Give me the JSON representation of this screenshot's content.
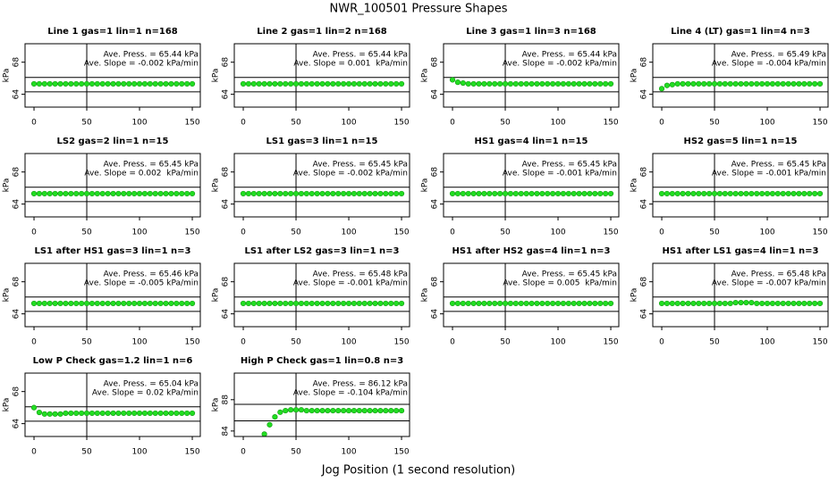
{
  "title": "NWR_100501  Pressure Shapes",
  "xlabel": "Jog Position (1 second resolution)",
  "chart_data": [
    {
      "type": "scatter",
      "title": "Line 1 gas=1 lin=1 n=168",
      "ylabel": "kPa",
      "color": "#22dd22",
      "x": [
        0,
        5,
        10,
        15,
        20,
        25,
        30,
        35,
        40,
        45,
        50,
        55,
        60,
        65,
        70,
        75,
        80,
        85,
        90,
        95,
        100,
        105,
        110,
        115,
        120,
        125,
        130,
        135,
        140,
        145,
        150
      ],
      "values": [
        65.3,
        65.3,
        65.3,
        65.3,
        65.3,
        65.3,
        65.3,
        65.3,
        65.3,
        65.3,
        65.3,
        65.3,
        65.3,
        65.3,
        65.3,
        65.3,
        65.3,
        65.3,
        65.3,
        65.3,
        65.3,
        65.3,
        65.3,
        65.3,
        65.3,
        65.3,
        65.3,
        65.3,
        65.3,
        65.3,
        65.3
      ],
      "xlim": [
        -8.5,
        157.6
      ],
      "ylim": [
        62.4,
        70.3
      ],
      "xticks": [
        0,
        50,
        100,
        150
      ],
      "yticks": [
        64,
        68
      ],
      "hlines": [
        66.1,
        64.3
      ],
      "vline": 50,
      "annotations": [
        "Ave. Press. = 65.44 kPa",
        "Ave. Slope = -0.002 kPa/min"
      ]
    },
    {
      "type": "scatter",
      "title": "Line 2 gas=1 lin=2 n=168",
      "ylabel": "kPa",
      "color": "#22dd22",
      "x": [
        0,
        5,
        10,
        15,
        20,
        25,
        30,
        35,
        40,
        45,
        50,
        55,
        60,
        65,
        70,
        75,
        80,
        85,
        90,
        95,
        100,
        105,
        110,
        115,
        120,
        125,
        130,
        135,
        140,
        145,
        150
      ],
      "values": [
        65.3,
        65.3,
        65.3,
        65.3,
        65.3,
        65.3,
        65.3,
        65.3,
        65.3,
        65.3,
        65.3,
        65.3,
        65.3,
        65.3,
        65.3,
        65.3,
        65.3,
        65.3,
        65.3,
        65.3,
        65.3,
        65.3,
        65.3,
        65.3,
        65.3,
        65.3,
        65.3,
        65.3,
        65.3,
        65.3,
        65.3
      ],
      "xlim": [
        -8.5,
        157.6
      ],
      "ylim": [
        62.4,
        70.3
      ],
      "xticks": [
        0,
        50,
        100,
        150
      ],
      "yticks": [
        64,
        68
      ],
      "hlines": [
        66.1,
        64.3
      ],
      "vline": 50,
      "annotations": [
        "Ave. Press. = 65.44 kPa",
        "Ave. Slope = 0.001  kPa/min"
      ]
    },
    {
      "type": "scatter",
      "title": "Line 3 gas=1 lin=3 n=168",
      "ylabel": "kPa",
      "color": "#22dd22",
      "x": [
        0,
        5,
        10,
        15,
        20,
        25,
        30,
        35,
        40,
        45,
        50,
        55,
        60,
        65,
        70,
        75,
        80,
        85,
        90,
        95,
        100,
        105,
        110,
        115,
        120,
        125,
        130,
        135,
        140,
        145,
        150
      ],
      "values": [
        65.8,
        65.5,
        65.4,
        65.3,
        65.3,
        65.3,
        65.3,
        65.3,
        65.3,
        65.3,
        65.3,
        65.3,
        65.3,
        65.3,
        65.3,
        65.3,
        65.3,
        65.3,
        65.3,
        65.3,
        65.3,
        65.3,
        65.3,
        65.3,
        65.3,
        65.3,
        65.3,
        65.3,
        65.3,
        65.3,
        65.3
      ],
      "xlim": [
        -8.5,
        157.6
      ],
      "ylim": [
        62.4,
        70.3
      ],
      "xticks": [
        0,
        50,
        100,
        150
      ],
      "yticks": [
        64,
        68
      ],
      "hlines": [
        66.1,
        64.3
      ],
      "vline": 50,
      "annotations": [
        "Ave. Press. = 65.44 kPa",
        "Ave. Slope = -0.002 kPa/min"
      ]
    },
    {
      "type": "scatter",
      "title": "Line 4 (LT) gas=1 lin=4 n=3",
      "ylabel": "kPa",
      "color": "#22dd22",
      "x": [
        0,
        5,
        10,
        15,
        20,
        25,
        30,
        35,
        40,
        45,
        50,
        55,
        60,
        65,
        70,
        75,
        80,
        85,
        90,
        95,
        100,
        105,
        110,
        115,
        120,
        125,
        130,
        135,
        140,
        145,
        150
      ],
      "values": [
        64.7,
        65.1,
        65.2,
        65.3,
        65.3,
        65.3,
        65.3,
        65.3,
        65.3,
        65.3,
        65.3,
        65.3,
        65.3,
        65.3,
        65.3,
        65.3,
        65.3,
        65.3,
        65.3,
        65.3,
        65.3,
        65.3,
        65.3,
        65.3,
        65.3,
        65.3,
        65.3,
        65.3,
        65.3,
        65.3,
        65.3
      ],
      "xlim": [
        -8.5,
        157.6
      ],
      "ylim": [
        62.4,
        70.3
      ],
      "xticks": [
        0,
        50,
        100,
        150
      ],
      "yticks": [
        64,
        68
      ],
      "hlines": [
        66.1,
        64.3
      ],
      "vline": 50,
      "annotations": [
        "Ave. Press. = 65.49 kPa",
        "Ave. Slope = -0.004 kPa/min"
      ]
    },
    {
      "type": "scatter",
      "title": "LS2 gas=2 lin=1 n=15",
      "ylabel": "kPa",
      "color": "#22dd22",
      "x": [
        0,
        5,
        10,
        15,
        20,
        25,
        30,
        35,
        40,
        45,
        50,
        55,
        60,
        65,
        70,
        75,
        80,
        85,
        90,
        95,
        100,
        105,
        110,
        115,
        120,
        125,
        130,
        135,
        140,
        145,
        150
      ],
      "values": [
        65.3,
        65.3,
        65.3,
        65.3,
        65.3,
        65.3,
        65.3,
        65.3,
        65.3,
        65.3,
        65.3,
        65.3,
        65.3,
        65.3,
        65.3,
        65.3,
        65.3,
        65.3,
        65.3,
        65.3,
        65.3,
        65.3,
        65.3,
        65.3,
        65.3,
        65.3,
        65.3,
        65.3,
        65.3,
        65.3,
        65.3
      ],
      "xlim": [
        -8.5,
        157.6
      ],
      "ylim": [
        62.4,
        70.3
      ],
      "xticks": [
        0,
        50,
        100,
        150
      ],
      "yticks": [
        64,
        68
      ],
      "hlines": [
        66.1,
        64.3
      ],
      "vline": 50,
      "annotations": [
        "Ave. Press. = 65.45 kPa",
        "Ave. Slope = 0.002  kPa/min"
      ]
    },
    {
      "type": "scatter",
      "title": "LS1 gas=3 lin=1 n=15",
      "ylabel": "kPa",
      "color": "#22dd22",
      "x": [
        0,
        5,
        10,
        15,
        20,
        25,
        30,
        35,
        40,
        45,
        50,
        55,
        60,
        65,
        70,
        75,
        80,
        85,
        90,
        95,
        100,
        105,
        110,
        115,
        120,
        125,
        130,
        135,
        140,
        145,
        150
      ],
      "values": [
        65.3,
        65.3,
        65.3,
        65.3,
        65.3,
        65.3,
        65.3,
        65.3,
        65.3,
        65.3,
        65.3,
        65.3,
        65.3,
        65.3,
        65.3,
        65.3,
        65.3,
        65.3,
        65.3,
        65.3,
        65.3,
        65.3,
        65.3,
        65.3,
        65.3,
        65.3,
        65.3,
        65.3,
        65.3,
        65.3,
        65.3
      ],
      "xlim": [
        -8.5,
        157.6
      ],
      "ylim": [
        62.4,
        70.3
      ],
      "xticks": [
        0,
        50,
        100,
        150
      ],
      "yticks": [
        64,
        68
      ],
      "hlines": [
        66.1,
        64.3
      ],
      "vline": 50,
      "annotations": [
        "Ave. Press. = 65.45 kPa",
        "Ave. Slope = -0.002 kPa/min"
      ]
    },
    {
      "type": "scatter",
      "title": "HS1 gas=4 lin=1 n=15",
      "ylabel": "kPa",
      "color": "#22dd22",
      "x": [
        0,
        5,
        10,
        15,
        20,
        25,
        30,
        35,
        40,
        45,
        50,
        55,
        60,
        65,
        70,
        75,
        80,
        85,
        90,
        95,
        100,
        105,
        110,
        115,
        120,
        125,
        130,
        135,
        140,
        145,
        150
      ],
      "values": [
        65.3,
        65.3,
        65.3,
        65.3,
        65.3,
        65.3,
        65.3,
        65.3,
        65.3,
        65.3,
        65.3,
        65.3,
        65.3,
        65.3,
        65.3,
        65.3,
        65.3,
        65.3,
        65.3,
        65.3,
        65.3,
        65.3,
        65.3,
        65.3,
        65.3,
        65.3,
        65.3,
        65.3,
        65.3,
        65.3,
        65.3
      ],
      "xlim": [
        -8.5,
        157.6
      ],
      "ylim": [
        62.4,
        70.3
      ],
      "xticks": [
        0,
        50,
        100,
        150
      ],
      "yticks": [
        64,
        68
      ],
      "hlines": [
        66.1,
        64.3
      ],
      "vline": 50,
      "annotations": [
        "Ave. Press. = 65.45 kPa",
        "Ave. Slope = -0.001 kPa/min"
      ]
    },
    {
      "type": "scatter",
      "title": "HS2 gas=5 lin=1 n=15",
      "ylabel": "kPa",
      "color": "#22dd22",
      "x": [
        0,
        5,
        10,
        15,
        20,
        25,
        30,
        35,
        40,
        45,
        50,
        55,
        60,
        65,
        70,
        75,
        80,
        85,
        90,
        95,
        100,
        105,
        110,
        115,
        120,
        125,
        130,
        135,
        140,
        145,
        150
      ],
      "values": [
        65.3,
        65.3,
        65.3,
        65.3,
        65.3,
        65.3,
        65.3,
        65.3,
        65.3,
        65.3,
        65.3,
        65.3,
        65.3,
        65.3,
        65.3,
        65.3,
        65.3,
        65.3,
        65.3,
        65.3,
        65.3,
        65.3,
        65.3,
        65.3,
        65.3,
        65.3,
        65.3,
        65.3,
        65.3,
        65.3,
        65.3
      ],
      "xlim": [
        -8.5,
        157.6
      ],
      "ylim": [
        62.4,
        70.3
      ],
      "xticks": [
        0,
        50,
        100,
        150
      ],
      "yticks": [
        64,
        68
      ],
      "hlines": [
        66.1,
        64.3
      ],
      "vline": 50,
      "annotations": [
        "Ave. Press. = 65.45 kPa",
        "Ave. Slope = -0.001 kPa/min"
      ]
    },
    {
      "type": "scatter",
      "title": "LS1 after HS1 gas=3 lin=1 n=3",
      "ylabel": "kPa",
      "color": "#22dd22",
      "x": [
        0,
        5,
        10,
        15,
        20,
        25,
        30,
        35,
        40,
        45,
        50,
        55,
        60,
        65,
        70,
        75,
        80,
        85,
        90,
        95,
        100,
        105,
        110,
        115,
        120,
        125,
        130,
        135,
        140,
        145,
        150
      ],
      "values": [
        65.3,
        65.3,
        65.3,
        65.3,
        65.3,
        65.3,
        65.3,
        65.3,
        65.3,
        65.3,
        65.3,
        65.3,
        65.3,
        65.3,
        65.3,
        65.3,
        65.3,
        65.3,
        65.3,
        65.3,
        65.3,
        65.3,
        65.3,
        65.3,
        65.3,
        65.3,
        65.3,
        65.3,
        65.3,
        65.3,
        65.3
      ],
      "xlim": [
        -8.5,
        157.6
      ],
      "ylim": [
        62.4,
        70.3
      ],
      "xticks": [
        0,
        50,
        100,
        150
      ],
      "yticks": [
        64,
        68
      ],
      "hlines": [
        66.1,
        64.3
      ],
      "vline": 50,
      "annotations": [
        "Ave. Press. = 65.46 kPa",
        "Ave. Slope = -0.005 kPa/min"
      ]
    },
    {
      "type": "scatter",
      "title": "LS1 after LS2 gas=3 lin=1 n=3",
      "ylabel": "kPa",
      "color": "#22dd22",
      "x": [
        0,
        5,
        10,
        15,
        20,
        25,
        30,
        35,
        40,
        45,
        50,
        55,
        60,
        65,
        70,
        75,
        80,
        85,
        90,
        95,
        100,
        105,
        110,
        115,
        120,
        125,
        130,
        135,
        140,
        145,
        150
      ],
      "values": [
        65.3,
        65.3,
        65.3,
        65.3,
        65.3,
        65.3,
        65.3,
        65.3,
        65.3,
        65.3,
        65.3,
        65.3,
        65.3,
        65.3,
        65.3,
        65.3,
        65.3,
        65.3,
        65.3,
        65.3,
        65.3,
        65.3,
        65.3,
        65.3,
        65.3,
        65.3,
        65.3,
        65.3,
        65.3,
        65.3,
        65.3
      ],
      "xlim": [
        -8.5,
        157.6
      ],
      "ylim": [
        62.4,
        70.3
      ],
      "xticks": [
        0,
        50,
        100,
        150
      ],
      "yticks": [
        64,
        68
      ],
      "hlines": [
        66.1,
        64.3
      ],
      "vline": 50,
      "annotations": [
        "Ave. Press. = 65.48 kPa",
        "Ave. Slope = -0.001 kPa/min"
      ]
    },
    {
      "type": "scatter",
      "title": "HS1 after HS2 gas=4 lin=1 n=3",
      "ylabel": "kPa",
      "color": "#22dd22",
      "x": [
        0,
        5,
        10,
        15,
        20,
        25,
        30,
        35,
        40,
        45,
        50,
        55,
        60,
        65,
        70,
        75,
        80,
        85,
        90,
        95,
        100,
        105,
        110,
        115,
        120,
        125,
        130,
        135,
        140,
        145,
        150
      ],
      "values": [
        65.3,
        65.3,
        65.3,
        65.3,
        65.3,
        65.3,
        65.3,
        65.3,
        65.3,
        65.3,
        65.3,
        65.3,
        65.3,
        65.3,
        65.3,
        65.3,
        65.3,
        65.3,
        65.3,
        65.3,
        65.3,
        65.3,
        65.3,
        65.3,
        65.3,
        65.3,
        65.3,
        65.3,
        65.3,
        65.3,
        65.3
      ],
      "xlim": [
        -8.5,
        157.6
      ],
      "ylim": [
        62.4,
        70.3
      ],
      "xticks": [
        0,
        50,
        100,
        150
      ],
      "yticks": [
        64,
        68
      ],
      "hlines": [
        66.1,
        64.3
      ],
      "vline": 50,
      "annotations": [
        "Ave. Press. = 65.45 kPa",
        "Ave. Slope = 0.005  kPa/min"
      ]
    },
    {
      "type": "scatter",
      "title": "HS1 after LS1 gas=4 lin=1 n=3",
      "ylabel": "kPa",
      "color": "#22dd22",
      "x": [
        0,
        5,
        10,
        15,
        20,
        25,
        30,
        35,
        40,
        45,
        50,
        55,
        60,
        65,
        70,
        75,
        80,
        85,
        90,
        95,
        100,
        105,
        110,
        115,
        120,
        125,
        130,
        135,
        140,
        145,
        150
      ],
      "values": [
        65.3,
        65.3,
        65.3,
        65.3,
        65.3,
        65.3,
        65.3,
        65.3,
        65.3,
        65.3,
        65.3,
        65.3,
        65.3,
        65.3,
        65.4,
        65.4,
        65.4,
        65.4,
        65.3,
        65.3,
        65.3,
        65.3,
        65.3,
        65.3,
        65.3,
        65.3,
        65.3,
        65.3,
        65.3,
        65.3,
        65.3
      ],
      "xlim": [
        -8.5,
        157.6
      ],
      "ylim": [
        62.4,
        70.3
      ],
      "xticks": [
        0,
        50,
        100,
        150
      ],
      "yticks": [
        64,
        68
      ],
      "hlines": [
        66.1,
        64.3
      ],
      "vline": 50,
      "annotations": [
        "Ave. Press. = 65.48 kPa",
        "Ave. Slope = -0.007 kPa/min"
      ]
    },
    {
      "type": "scatter",
      "title": "Low P Check gas=1.2 lin=1 n=6",
      "ylabel": "kPa",
      "color": "#22dd22",
      "x": [
        0,
        5,
        10,
        15,
        20,
        25,
        30,
        35,
        40,
        45,
        50,
        55,
        60,
        65,
        70,
        75,
        80,
        85,
        90,
        95,
        100,
        105,
        110,
        115,
        120,
        125,
        130,
        135,
        140,
        145,
        150
      ],
      "values": [
        66.0,
        65.4,
        65.2,
        65.2,
        65.2,
        65.2,
        65.3,
        65.3,
        65.3,
        65.3,
        65.3,
        65.3,
        65.3,
        65.3,
        65.3,
        65.3,
        65.3,
        65.3,
        65.3,
        65.3,
        65.3,
        65.3,
        65.3,
        65.3,
        65.3,
        65.3,
        65.3,
        65.3,
        65.3,
        65.3,
        65.3
      ],
      "xlim": [
        -8.5,
        157.6
      ],
      "ylim": [
        62.4,
        70.3
      ],
      "xticks": [
        0,
        50,
        100,
        150
      ],
      "yticks": [
        64,
        68
      ],
      "hlines": [
        66.1,
        64.3
      ],
      "vline": 50,
      "annotations": [
        "Ave. Press. = 65.04 kPa",
        "Ave. Slope = 0.02 kPa/min"
      ]
    },
    {
      "type": "scatter",
      "title": "High P Check gas=1 lin=0.8 n=3",
      "ylabel": "kPa",
      "color": "#22dd22",
      "x": [
        0,
        5,
        10,
        15,
        20,
        25,
        30,
        35,
        40,
        45,
        50,
        55,
        60,
        65,
        70,
        75,
        80,
        85,
        90,
        95,
        100,
        105,
        110,
        115,
        120,
        125,
        130,
        135,
        140,
        145,
        150
      ],
      "values": [
        null,
        null,
        null,
        null,
        83.6,
        84.8,
        85.8,
        86.4,
        86.6,
        86.7,
        86.7,
        86.7,
        86.6,
        86.6,
        86.6,
        86.6,
        86.6,
        86.6,
        86.6,
        86.6,
        86.6,
        86.6,
        86.6,
        86.6,
        86.6,
        86.6,
        86.6,
        86.6,
        86.6,
        86.6,
        86.6
      ],
      "xlim": [
        -8.5,
        157.6
      ],
      "ylim": [
        83.3,
        91.4
      ],
      "xticks": [
        0,
        50,
        100,
        150
      ],
      "yticks": [
        84,
        88
      ],
      "hlines": [
        87.4,
        85.3
      ],
      "vline": 50,
      "annotations": [
        "Ave. Press. = 86.12 kPa",
        "Ave. Slope = -0.104 kPa/min"
      ]
    }
  ]
}
